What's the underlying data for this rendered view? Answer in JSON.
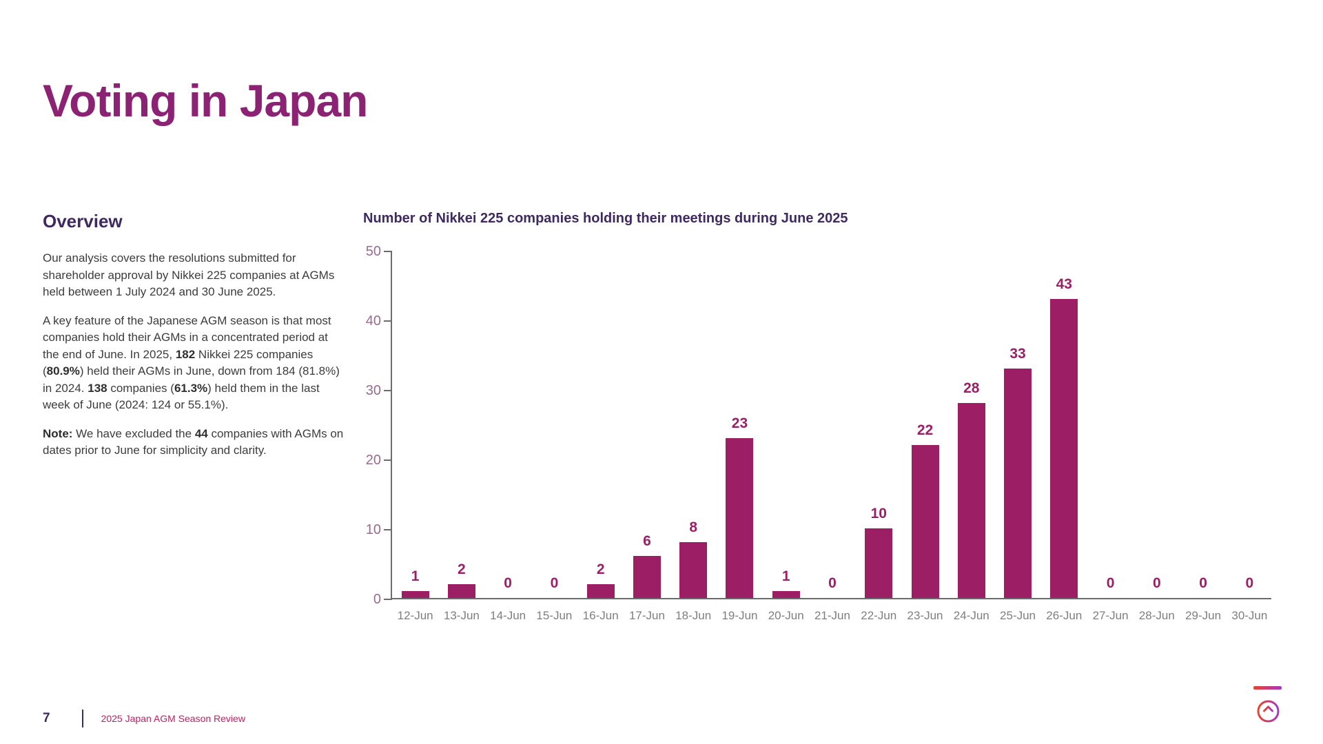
{
  "page": {
    "title": "Voting in Japan",
    "page_number": "7",
    "footer_title": "2025 Japan AGM Season Review"
  },
  "overview": {
    "heading": "Overview",
    "paragraphs": [
      {
        "segments": [
          {
            "t": "Our analysis covers the resolutions submitted for shareholder approval by Nikkei 225 companies at AGMs held between 1 July 2024 and 30 June 2025.",
            "b": false
          }
        ]
      },
      {
        "segments": [
          {
            "t": "A key feature of the Japanese AGM season is that most companies hold their AGMs in a concentrated period at the end of June. In 2025, ",
            "b": false
          },
          {
            "t": "182",
            "b": true
          },
          {
            "t": " Nikkei 225 companies (",
            "b": false
          },
          {
            "t": "80.9%",
            "b": true
          },
          {
            "t": ") held their AGMs in June, down from 184 (81.8%) in 2024. ",
            "b": false
          },
          {
            "t": "138",
            "b": true
          },
          {
            "t": " companies (",
            "b": false
          },
          {
            "t": "61.3%",
            "b": true
          },
          {
            "t": ") held them in the last week of June (2024: 124 or 55.1%).",
            "b": false
          }
        ]
      },
      {
        "segments": [
          {
            "t": "Note:",
            "b": true
          },
          {
            "t": " We have excluded the ",
            "b": false
          },
          {
            "t": "44",
            "b": true
          },
          {
            "t": " companies with AGMs on dates prior to June for simplicity and clarity.",
            "b": false
          }
        ]
      }
    ]
  },
  "chart_data": {
    "type": "bar",
    "title": "Number of Nikkei 225 companies holding their meetings during June 2025",
    "categories": [
      "12-Jun",
      "13-Jun",
      "14-Jun",
      "15-Jun",
      "16-Jun",
      "17-Jun",
      "18-Jun",
      "19-Jun",
      "20-Jun",
      "21-Jun",
      "22-Jun",
      "23-Jun",
      "24-Jun",
      "25-Jun",
      "26-Jun",
      "27-Jun",
      "28-Jun",
      "29-Jun",
      "30-Jun"
    ],
    "values": [
      1,
      2,
      0,
      0,
      2,
      6,
      8,
      23,
      1,
      0,
      10,
      22,
      28,
      33,
      43,
      0,
      0,
      0,
      0
    ],
    "xlabel": "",
    "ylabel": "",
    "ylim": [
      0,
      50
    ],
    "yticks": [
      0,
      10,
      20,
      30,
      40,
      50
    ],
    "grid": false,
    "data_labels": true,
    "legend": "none",
    "bar_color": "#9C1F66"
  },
  "icons": {
    "back_to_top": "circle-arrow-up-icon"
  },
  "colors": {
    "title": "#8C2273",
    "heading": "#3E2A5F",
    "body_text": "#3C3C3C",
    "bar": "#9C1F66",
    "y_axis_labels": "#9A6B8F",
    "x_axis_labels": "#7E7E7E",
    "axis_line": "#6B6B6B",
    "footer_accent": "#C22060",
    "gradient_start": "#EA4327",
    "gradient_end": "#A637C6"
  }
}
